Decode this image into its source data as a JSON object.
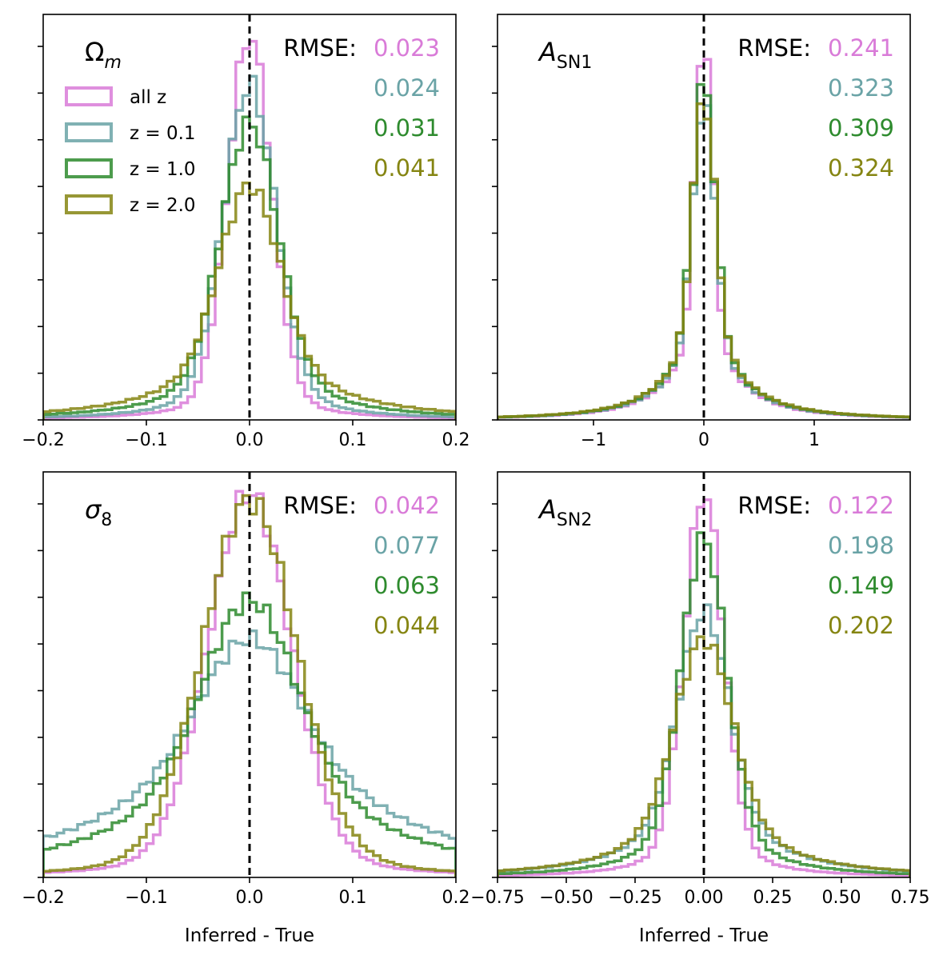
{
  "figure": {
    "xlabel": "Inferred - True",
    "legend": [
      "all z",
      "z = 0.1",
      "z = 1.0",
      "z = 2.0"
    ],
    "colors": [
      "#d97bd8",
      "#6aa3a6",
      "#2e8b2e",
      "#858512"
    ],
    "rmse_label": "RMSE:"
  },
  "chart_data": [
    {
      "type": "histogram",
      "param": "Ω",
      "param_sub": "m",
      "xlim": [
        -0.2,
        0.2
      ],
      "ticks": [
        "−0.2",
        "−0.1",
        "0.0",
        "0.1",
        "0.2"
      ],
      "tick_values": [
        -0.2,
        -0.1,
        0.0,
        0.1,
        0.2
      ],
      "xlabel": "",
      "legend": "upper-left",
      "rmse": [
        "0.023",
        "0.024",
        "0.031",
        "0.041"
      ],
      "series": [
        {
          "name": "all z",
          "peak": 1.0,
          "core": 0.021,
          "tail": 0.045,
          "tailfrac": 0.1
        },
        {
          "name": "z = 0.1",
          "peak": 0.87,
          "core": 0.025,
          "tail": 0.05,
          "tailfrac": 0.15
        },
        {
          "name": "z = 1.0",
          "peak": 0.77,
          "core": 0.027,
          "tail": 0.06,
          "tailfrac": 0.22
        },
        {
          "name": "z = 2.0",
          "peak": 0.61,
          "core": 0.028,
          "tail": 0.07,
          "tailfrac": 0.32
        }
      ]
    },
    {
      "type": "histogram",
      "param": "A",
      "param_sub": "SN1",
      "xlim": [
        -1.87,
        1.87
      ],
      "ticks": [
        "−1",
        "0",
        "1"
      ],
      "tick_values": [
        -1,
        0,
        1
      ],
      "xlabel": "",
      "rmse": [
        "0.241",
        "0.323",
        "0.309",
        "0.324"
      ],
      "series": [
        {
          "name": "all z",
          "peak": 1.0,
          "core": 0.08,
          "tail": 0.32,
          "tailfrac": 0.22
        },
        {
          "name": "z = 0.1",
          "peak": 0.82,
          "core": 0.1,
          "tail": 0.34,
          "tailfrac": 0.26
        },
        {
          "name": "z = 1.0",
          "peak": 0.88,
          "core": 0.1,
          "tail": 0.34,
          "tailfrac": 0.26
        },
        {
          "name": "z = 2.0",
          "peak": 0.84,
          "core": 0.1,
          "tail": 0.35,
          "tailfrac": 0.27
        }
      ]
    },
    {
      "type": "histogram",
      "param": "σ",
      "param_sub": "8",
      "xlim": [
        -0.2,
        0.2
      ],
      "ticks": [
        "−0.2",
        "−0.1",
        "0.0",
        "0.1",
        "0.2"
      ],
      "tick_values": [
        -0.2,
        -0.1,
        0.0,
        0.1,
        0.2
      ],
      "xlabel": "Inferred - True",
      "rmse": [
        "0.042",
        "0.077",
        "0.063",
        "0.044"
      ],
      "series": [
        {
          "name": "all z",
          "peak": 1.0,
          "core": 0.04,
          "tail": 0.06,
          "tailfrac": 0.15
        },
        {
          "name": "z = 0.1",
          "peak": 0.62,
          "core": 0.045,
          "tail": 0.12,
          "tailfrac": 0.62
        },
        {
          "name": "z = 1.0",
          "peak": 0.72,
          "core": 0.043,
          "tail": 0.1,
          "tailfrac": 0.5
        },
        {
          "name": "z = 2.0",
          "peak": 0.98,
          "core": 0.045,
          "tail": 0.07,
          "tailfrac": 0.15
        }
      ]
    },
    {
      "type": "histogram",
      "param": "A",
      "param_sub": "SN2",
      "xlim": [
        -0.75,
        0.75
      ],
      "ticks": [
        "−0.75",
        "−0.50",
        "−0.25",
        "0.00",
        "0.25",
        "0.50",
        "0.75"
      ],
      "tick_values": [
        -0.75,
        -0.5,
        -0.25,
        0.0,
        0.25,
        0.5,
        0.75
      ],
      "xlabel": "Inferred - True",
      "rmse": [
        "0.122",
        "0.198",
        "0.149",
        "0.202"
      ],
      "series": [
        {
          "name": "all z",
          "peak": 1.0,
          "core": 0.07,
          "tail": 0.14,
          "tailfrac": 0.15
        },
        {
          "name": "z = 0.1",
          "peak": 0.69,
          "core": 0.09,
          "tail": 0.22,
          "tailfrac": 0.3
        },
        {
          "name": "z = 1.0",
          "peak": 0.88,
          "core": 0.08,
          "tail": 0.17,
          "tailfrac": 0.22
        },
        {
          "name": "z = 2.0",
          "peak": 0.62,
          "core": 0.1,
          "tail": 0.22,
          "tailfrac": 0.35
        }
      ]
    }
  ]
}
